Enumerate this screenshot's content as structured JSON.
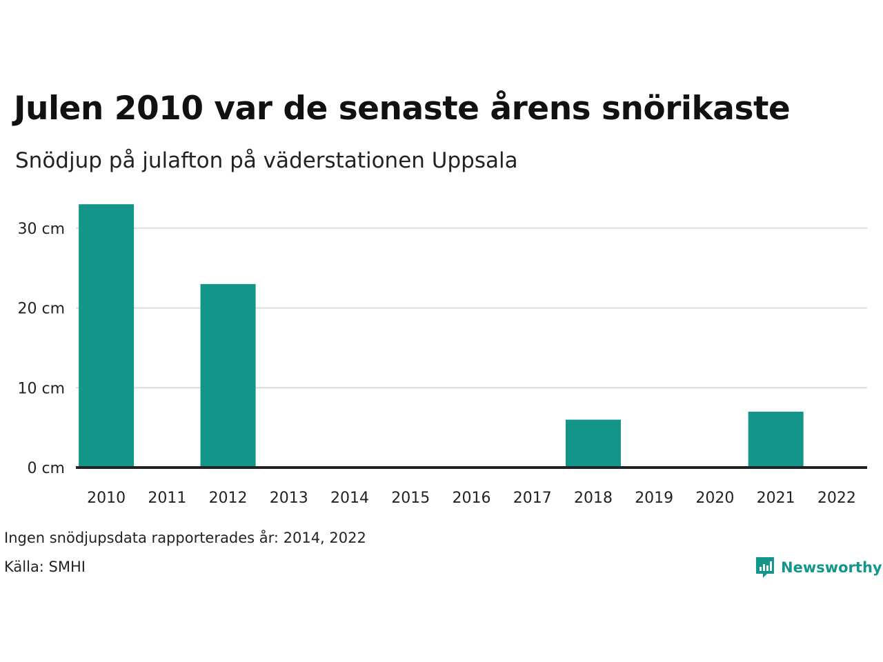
{
  "title": "Julen 2010 var de senaste årens snörikaste",
  "subtitle": "Snödjup på julafton på väderstationen Uppsala",
  "note": "Ingen snödjupsdata rapporterades år: 2014, 2022",
  "source": "Källa: SMHI",
  "brand": {
    "name": "Newsworthy",
    "icon": "newsworthy-logo-icon",
    "color": "#13958a"
  },
  "colors": {
    "bar": "#13958a",
    "grid": "#e2e2e2",
    "axis": "#222222"
  },
  "chart_data": {
    "type": "bar",
    "categories": [
      "2010",
      "2011",
      "2012",
      "2013",
      "2014",
      "2015",
      "2016",
      "2017",
      "2018",
      "2019",
      "2020",
      "2021",
      "2022"
    ],
    "values": [
      33,
      0,
      23,
      0,
      null,
      0,
      0,
      0,
      6,
      0,
      0,
      7,
      null
    ],
    "yticks": [
      "0 cm",
      "10 cm",
      "20 cm",
      "30 cm"
    ],
    "ylim": [
      0,
      33
    ],
    "grid": true
  }
}
